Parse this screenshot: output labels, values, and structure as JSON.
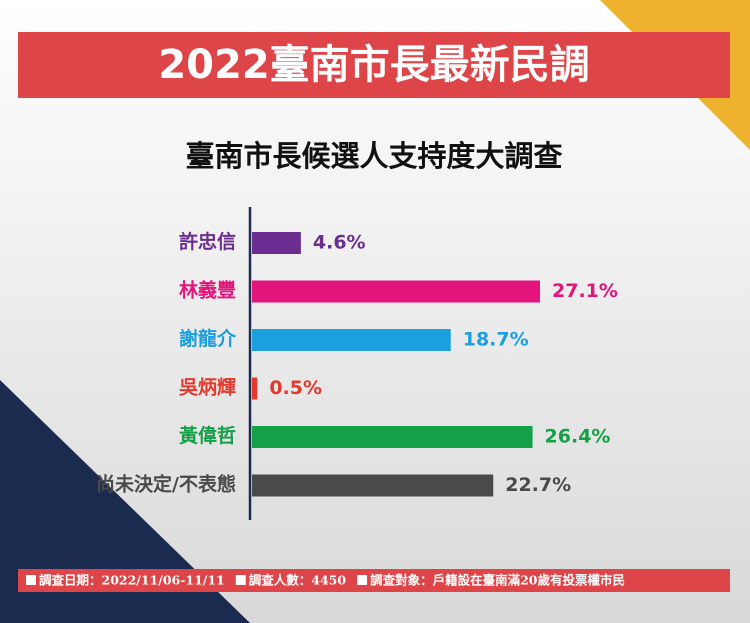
{
  "chart_data": {
    "type": "hbar",
    "title": "2022臺南市長最新民調",
    "subtitle": "臺南市長候選人支持度大調查",
    "categories": [
      "許忠信",
      "林義豐",
      "謝龍介",
      "吳炳輝",
      "黃偉哲",
      "尚未決定/不表態"
    ],
    "values": [
      4.6,
      27.1,
      18.7,
      0.5,
      26.4,
      22.7
    ],
    "value_labels": [
      "4.6%",
      "27.1%",
      "18.7%",
      "0.5%",
      "26.4%",
      "22.7%"
    ],
    "colors": [
      "#6b2d8f",
      "#e3147c",
      "#1b9fde",
      "#e23b2e",
      "#14a046",
      "#4a4a4a"
    ],
    "footnotes": [
      "調查日期：2022/11/06-11/11",
      "調查人數：4450",
      "調查對象：戶籍設在臺南滿20歲有投票權市民"
    ]
  }
}
